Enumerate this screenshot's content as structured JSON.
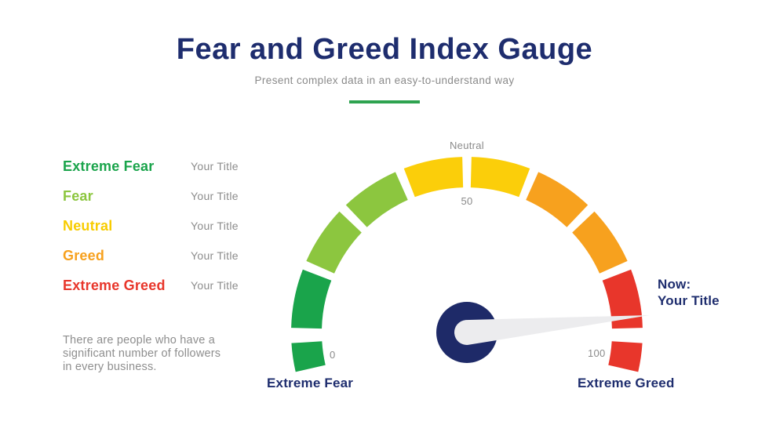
{
  "header": {
    "title": "Fear and Greed Index Gauge",
    "subtitle": "Present complex data in an easy-to-understand way",
    "divider_color": "#2EA350"
  },
  "legend": {
    "items": [
      {
        "label": "Extreme Fear",
        "color": "#1AA44B",
        "value": "Your Title"
      },
      {
        "label": "Fear",
        "color": "#8CC63F",
        "value": "Your Title"
      },
      {
        "label": "Neutral",
        "color": "#F8CC00",
        "value": "Your Title"
      },
      {
        "label": "Greed",
        "color": "#F7A11E",
        "value": "Your Title"
      },
      {
        "label": "Extreme Greed",
        "color": "#E8362B",
        "value": "Your Title"
      }
    ]
  },
  "description": "There are people who have a significant number of followers in every business.",
  "chart_data": {
    "type": "gauge",
    "min": 0,
    "max": 100,
    "needle_value": 97,
    "ticks": {
      "min": "0",
      "mid": "50",
      "max": "100"
    },
    "top_label": "Neutral",
    "min_label": "Extreme Fear",
    "max_label": "Extreme Greed",
    "annotation": {
      "line1": "Now:",
      "line2": "Your Title"
    },
    "colors": {
      "hub": "#1E2A68",
      "needle": "#ECECEE"
    },
    "arc_segments": [
      {
        "band": "extreme-fear",
        "color": "#1AA44B",
        "start_deg": 193.0,
        "end_deg": 183.5
      },
      {
        "band": "extreme-fear",
        "color": "#1AA44B",
        "start_deg": 178.5,
        "end_deg": 159.0
      },
      {
        "band": "fear",
        "color": "#8CC63F",
        "start_deg": 156.0,
        "end_deg": 136.5
      },
      {
        "band": "fear",
        "color": "#8CC63F",
        "start_deg": 133.5,
        "end_deg": 114.0
      },
      {
        "band": "neutral",
        "color": "#FBCE0A",
        "start_deg": 111.0,
        "end_deg": 91.5
      },
      {
        "band": "neutral",
        "color": "#FBCE0A",
        "start_deg": 88.5,
        "end_deg": 69.0
      },
      {
        "band": "greed",
        "color": "#F7A11E",
        "start_deg": 66.0,
        "end_deg": 46.5
      },
      {
        "band": "greed",
        "color": "#F7A11E",
        "start_deg": 43.5,
        "end_deg": 24.0
      },
      {
        "band": "extreme-greed",
        "color": "#E8362B",
        "start_deg": 21.0,
        "end_deg": 1.5
      },
      {
        "band": "extreme-greed",
        "color": "#E8362B",
        "start_deg": -3.5,
        "end_deg": -13.0
      }
    ]
  }
}
